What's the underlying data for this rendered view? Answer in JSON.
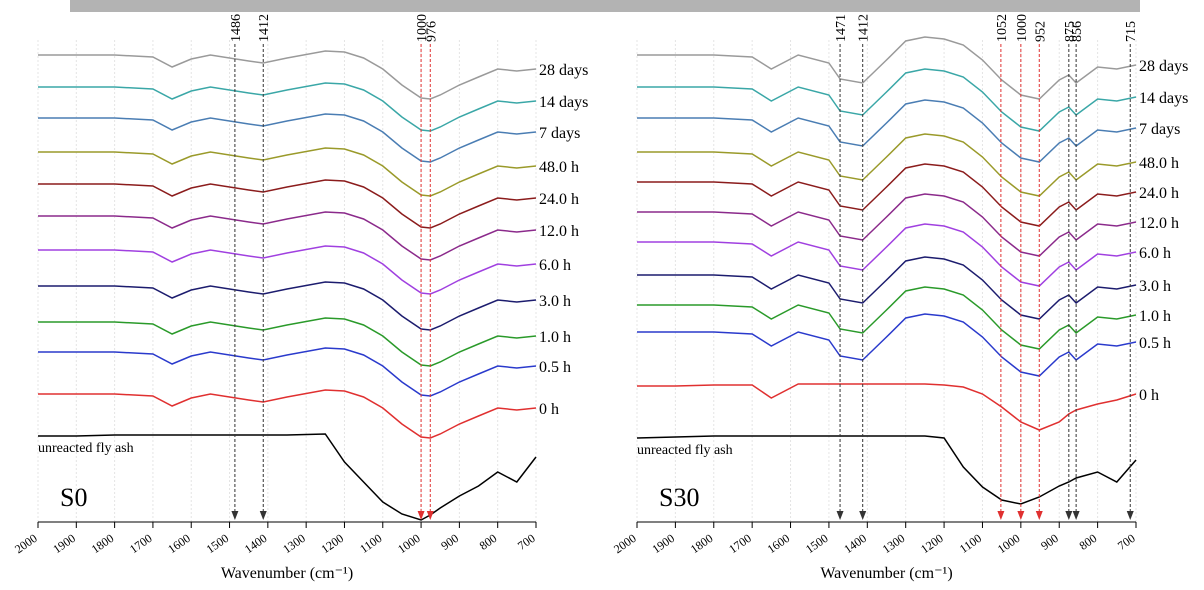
{
  "chart_data": [
    {
      "type": "line",
      "title": "S0",
      "xlabel": "Wavenumber (cm⁻¹)",
      "grid": true,
      "xlim": [
        2000,
        700
      ],
      "xticks": [
        2000,
        1900,
        1800,
        1700,
        1600,
        1500,
        1400,
        1300,
        1200,
        1100,
        1000,
        900,
        800,
        700
      ],
      "ylim": [
        0,
        500
      ],
      "x": [
        2000,
        1900,
        1800,
        1700,
        1650,
        1600,
        1550,
        1450,
        1412,
        1350,
        1250,
        1200,
        1150,
        1100,
        1050,
        1000,
        976,
        950,
        900,
        850,
        800,
        750,
        700
      ],
      "series": [
        {
          "name": "28 days",
          "color": "#9a9a9a",
          "values": [
            467,
            467,
            467,
            465,
            455,
            463,
            467,
            461,
            459,
            464,
            471,
            470,
            464,
            453,
            437,
            424,
            423,
            427,
            437,
            445,
            453,
            451,
            453
          ]
        },
        {
          "name": "14 days",
          "color": "#3aa7a7",
          "values": [
            435,
            435,
            435,
            433,
            423,
            431,
            435,
            429,
            427,
            432,
            439,
            438,
            432,
            421,
            405,
            392,
            391,
            395,
            405,
            413,
            421,
            419,
            421
          ]
        },
        {
          "name": "7 days",
          "color": "#4a7db3",
          "values": [
            404,
            404,
            404,
            402,
            392,
            400,
            404,
            398,
            396,
            401,
            408,
            407,
            401,
            390,
            374,
            361,
            360,
            364,
            374,
            382,
            390,
            388,
            390
          ]
        },
        {
          "name": "48.0 h",
          "color": "#9a9a2a",
          "values": [
            370,
            370,
            370,
            368,
            358,
            366,
            370,
            364,
            362,
            367,
            374,
            373,
            367,
            356,
            340,
            327,
            326,
            330,
            340,
            348,
            356,
            354,
            356
          ]
        },
        {
          "name": "24.0 h",
          "color": "#8b1c1c",
          "values": [
            338,
            338,
            338,
            336,
            326,
            334,
            338,
            332,
            330,
            335,
            342,
            341,
            335,
            324,
            308,
            295,
            294,
            298,
            308,
            316,
            324,
            322,
            324
          ]
        },
        {
          "name": "12.0 h",
          "color": "#8b2a8b",
          "values": [
            306,
            306,
            306,
            304,
            294,
            302,
            306,
            300,
            298,
            303,
            310,
            309,
            303,
            292,
            276,
            263,
            262,
            266,
            276,
            284,
            292,
            290,
            292
          ]
        },
        {
          "name": "6.0 h",
          "color": "#a040e0",
          "values": [
            272,
            272,
            272,
            270,
            260,
            268,
            272,
            266,
            264,
            269,
            276,
            275,
            269,
            258,
            242,
            229,
            228,
            232,
            242,
            250,
            258,
            256,
            258
          ]
        },
        {
          "name": "3.0 h",
          "color": "#1c1c6e",
          "values": [
            236,
            236,
            236,
            234,
            224,
            232,
            236,
            230,
            228,
            233,
            240,
            239,
            233,
            222,
            206,
            193,
            192,
            196,
            206,
            214,
            222,
            220,
            222
          ]
        },
        {
          "name": "1.0 h",
          "color": "#2a9a2a",
          "values": [
            200,
            200,
            200,
            198,
            188,
            196,
            200,
            194,
            192,
            197,
            204,
            203,
            197,
            186,
            170,
            157,
            156,
            160,
            170,
            178,
            186,
            184,
            186
          ]
        },
        {
          "name": "0.5 h",
          "color": "#2a3acc",
          "values": [
            170,
            170,
            170,
            168,
            158,
            166,
            170,
            164,
            162,
            167,
            174,
            173,
            167,
            156,
            140,
            127,
            126,
            130,
            140,
            148,
            156,
            154,
            156
          ]
        },
        {
          "name": "0 h",
          "color": "#e03030",
          "values": [
            128,
            128,
            128,
            126,
            116,
            124,
            128,
            122,
            120,
            125,
            132,
            131,
            125,
            114,
            98,
            85,
            84,
            88,
            98,
            106,
            114,
            112,
            114
          ]
        },
        {
          "name": "unreacted fly ash",
          "color": "#000000",
          "values": [
            86,
            86,
            87,
            87,
            87,
            87,
            87,
            87,
            87,
            87,
            88,
            60,
            40,
            20,
            8,
            2,
            7,
            14,
            26,
            36,
            50,
            40,
            65
          ]
        }
      ],
      "markers": [
        {
          "value": 1486,
          "color": "#333333"
        },
        {
          "value": 1412,
          "color": "#333333"
        },
        {
          "value": 1000,
          "color": "#e03030"
        },
        {
          "value": 976,
          "color": "#e03030"
        }
      ]
    },
    {
      "type": "line",
      "title": "S30",
      "xlabel": "Wavenumber (cm⁻¹)",
      "grid": true,
      "xlim": [
        2000,
        700
      ],
      "xticks": [
        2000,
        1900,
        1800,
        1700,
        1600,
        1500,
        1400,
        1300,
        1200,
        1100,
        1000,
        900,
        800,
        700
      ],
      "ylim": [
        0,
        500
      ],
      "x": [
        2000,
        1900,
        1800,
        1700,
        1650,
        1580,
        1500,
        1471,
        1412,
        1350,
        1300,
        1250,
        1200,
        1150,
        1100,
        1050,
        1000,
        952,
        900,
        875,
        856,
        800,
        750,
        700
      ],
      "series": [
        {
          "name": "28 days",
          "color": "#9a9a9a",
          "values": [
            467,
            467,
            467,
            465,
            453,
            467,
            459,
            443,
            439,
            462,
            481,
            485,
            483,
            477,
            462,
            442,
            427,
            423,
            442,
            447,
            439,
            455,
            453,
            457
          ]
        },
        {
          "name": "14 days",
          "color": "#3aa7a7",
          "values": [
            435,
            435,
            435,
            433,
            421,
            435,
            427,
            411,
            407,
            430,
            449,
            453,
            451,
            445,
            430,
            410,
            395,
            391,
            410,
            415,
            407,
            423,
            421,
            425
          ]
        },
        {
          "name": "7 days",
          "color": "#4a7db3",
          "values": [
            404,
            404,
            404,
            402,
            390,
            404,
            396,
            380,
            376,
            399,
            418,
            422,
            420,
            414,
            399,
            379,
            364,
            360,
            379,
            384,
            376,
            392,
            390,
            394
          ]
        },
        {
          "name": "48.0 h",
          "color": "#9a9a2a",
          "values": [
            370,
            370,
            370,
            368,
            356,
            370,
            362,
            346,
            342,
            365,
            384,
            388,
            386,
            380,
            365,
            345,
            330,
            326,
            345,
            350,
            342,
            358,
            356,
            360
          ]
        },
        {
          "name": "24.0 h",
          "color": "#8b1c1c",
          "values": [
            340,
            340,
            340,
            338,
            326,
            340,
            332,
            316,
            312,
            335,
            354,
            358,
            356,
            350,
            335,
            315,
            300,
            296,
            315,
            320,
            312,
            328,
            326,
            330
          ]
        },
        {
          "name": "12.0 h",
          "color": "#8b2a8b",
          "values": [
            310,
            310,
            310,
            308,
            296,
            310,
            302,
            286,
            282,
            305,
            324,
            328,
            326,
            320,
            305,
            285,
            270,
            266,
            285,
            290,
            282,
            298,
            296,
            300
          ]
        },
        {
          "name": "6.0 h",
          "color": "#a040e0",
          "values": [
            280,
            280,
            280,
            278,
            266,
            280,
            272,
            256,
            252,
            275,
            294,
            298,
            296,
            290,
            275,
            255,
            240,
            236,
            255,
            260,
            252,
            268,
            266,
            270
          ]
        },
        {
          "name": "3.0 h",
          "color": "#1c1c6e",
          "values": [
            247,
            247,
            247,
            245,
            233,
            247,
            239,
            223,
            219,
            242,
            261,
            265,
            263,
            257,
            242,
            222,
            207,
            203,
            222,
            227,
            219,
            235,
            233,
            237
          ]
        },
        {
          "name": "1.0 h",
          "color": "#2a9a2a",
          "values": [
            217,
            217,
            217,
            215,
            203,
            217,
            209,
            193,
            189,
            212,
            231,
            235,
            233,
            227,
            212,
            192,
            177,
            173,
            192,
            197,
            189,
            205,
            203,
            207
          ]
        },
        {
          "name": "0.5 h",
          "color": "#2a3acc",
          "values": [
            190,
            190,
            190,
            188,
            176,
            190,
            182,
            166,
            162,
            185,
            204,
            208,
            206,
            200,
            185,
            165,
            150,
            146,
            165,
            170,
            162,
            178,
            176,
            180
          ]
        },
        {
          "name": "0 h",
          "color": "#e03030",
          "values": [
            136,
            136,
            137,
            137,
            124,
            138,
            138,
            138,
            138,
            138,
            138,
            138,
            137,
            135,
            128,
            115,
            100,
            92,
            100,
            108,
            112,
            118,
            122,
            128
          ]
        },
        {
          "name": "unreacted fly ash",
          "color": "#000000",
          "values": [
            84,
            85,
            86,
            86,
            86,
            86,
            86,
            86,
            86,
            86,
            86,
            86,
            84,
            55,
            35,
            22,
            18,
            25,
            36,
            40,
            44,
            50,
            40,
            62
          ]
        }
      ],
      "markers": [
        {
          "value": 1471,
          "color": "#333333"
        },
        {
          "value": 1412,
          "color": "#333333"
        },
        {
          "value": 1052,
          "color": "#e03030"
        },
        {
          "value": 1000,
          "color": "#e03030"
        },
        {
          "value": 952,
          "color": "#e03030"
        },
        {
          "value": 875,
          "color": "#333333"
        },
        {
          "value": 856,
          "color": "#333333"
        },
        {
          "value": 715,
          "color": "#333333"
        }
      ]
    }
  ]
}
